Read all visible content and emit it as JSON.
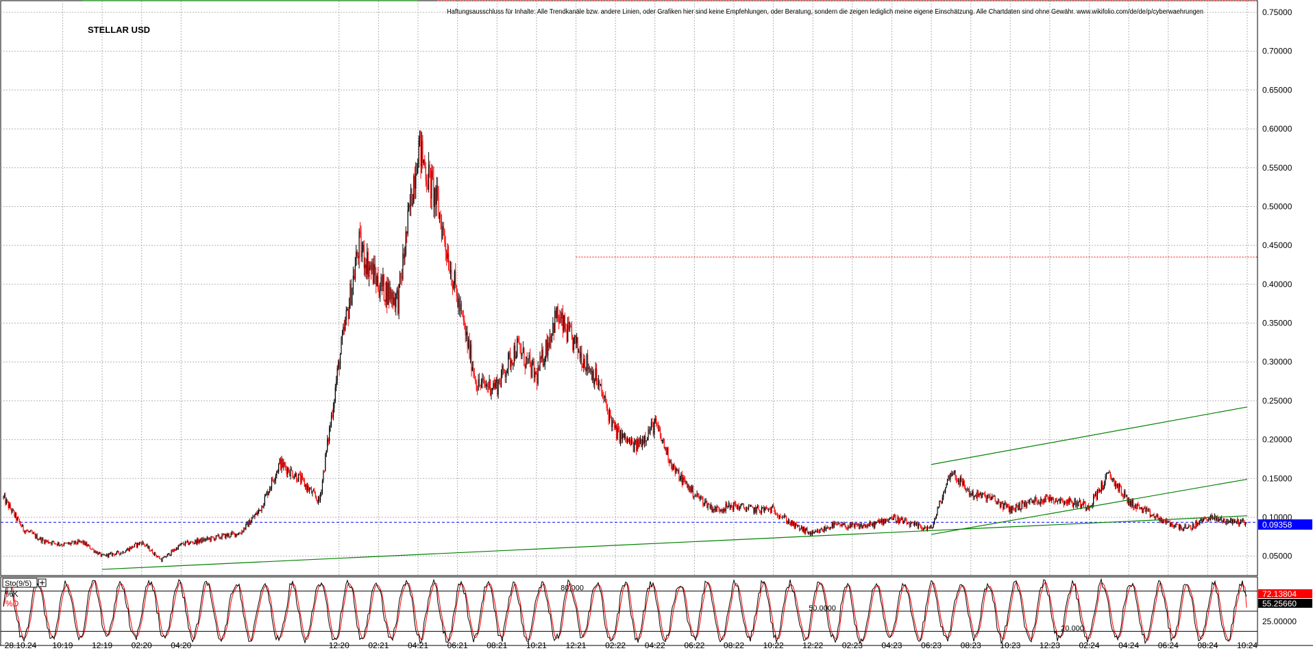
{
  "chart_data": [
    {
      "type": "candlestick",
      "title": "STELLAR USD",
      "disclaimer": "Haftungsausschluss für Inhalte: Alle Trendkanäle bzw. andere Linien, oder Grafiken hier sind keine Empfehlungen, oder Beratung, sondern die zeigen lediglich meine eigene Einschätzung. Alle Chartdaten sind ohne Gewähr. www.wikifolio.com/de/de/p/cyberwaehrungen",
      "x_tick_labels": [
        "28.10.24",
        "10:19",
        "12:19",
        "02:20",
        "04:20",
        "12:20",
        "02:21",
        "04:21",
        "06:21",
        "08:21",
        "10:21",
        "12:21",
        "02:22",
        "04:22",
        "06:22",
        "08:22",
        "10:22",
        "12:22",
        "02:23",
        "04:23",
        "06:23",
        "08:23",
        "10:23",
        "12:23",
        "02:24",
        "04:24",
        "06:24",
        "08:24",
        "10:24"
      ],
      "y_ticks": [
        "0.05000",
        "0.10000",
        "0.15000",
        "0.20000",
        "0.25000",
        "0.30000",
        "0.35000",
        "0.40000",
        "0.45000",
        "0.50000",
        "0.55000",
        "0.60000",
        "0.65000",
        "0.70000",
        "0.75000"
      ],
      "ylim": [
        0.025,
        0.765
      ],
      "grid": true,
      "last_price_label": "0.09358",
      "last_price": 0.09358,
      "period_range": [
        "07:19",
        "10:24"
      ],
      "price_anchors": [
        [
          "07:19",
          0.125
        ],
        [
          "08:19",
          0.085
        ],
        [
          "09:19",
          0.07
        ],
        [
          "10:19",
          0.065
        ],
        [
          "11:19",
          0.068
        ],
        [
          "12:19",
          0.05
        ],
        [
          "01:20",
          0.055
        ],
        [
          "02:20",
          0.068
        ],
        [
          "03:20",
          0.045
        ],
        [
          "04:20",
          0.065
        ],
        [
          "05:20",
          0.07
        ],
        [
          "06:20",
          0.075
        ],
        [
          "07:20",
          0.08
        ],
        [
          "08:20",
          0.11
        ],
        [
          "09:20",
          0.17
        ],
        [
          "10:20",
          0.15
        ],
        [
          "11:20",
          0.12
        ],
        [
          "12:20",
          0.3
        ],
        [
          "01:21",
          0.45
        ],
        [
          "02:21",
          0.4
        ],
        [
          "03:21",
          0.38
        ],
        [
          "04:21",
          0.58
        ],
        [
          "05:21",
          0.5
        ],
        [
          "06:21",
          0.38
        ],
        [
          "07:21",
          0.27
        ],
        [
          "08:21",
          0.27
        ],
        [
          "09:21",
          0.32
        ],
        [
          "10:21",
          0.28
        ],
        [
          "11:21",
          0.36
        ],
        [
          "12:21",
          0.32
        ],
        [
          "01:22",
          0.28
        ],
        [
          "02:22",
          0.21
        ],
        [
          "03:22",
          0.19
        ],
        [
          "04:22",
          0.22
        ],
        [
          "05:22",
          0.16
        ],
        [
          "06:22",
          0.13
        ],
        [
          "07:22",
          0.11
        ],
        [
          "08:22",
          0.115
        ],
        [
          "09:22",
          0.11
        ],
        [
          "10:22",
          0.11
        ],
        [
          "11:22",
          0.09
        ],
        [
          "12:22",
          0.078
        ],
        [
          "01:23",
          0.09
        ],
        [
          "02:23",
          0.088
        ],
        [
          "03:23",
          0.09
        ],
        [
          "04:23",
          0.1
        ],
        [
          "05:23",
          0.09
        ],
        [
          "06:23",
          0.085
        ],
        [
          "07:23",
          0.16
        ],
        [
          "08:23",
          0.13
        ],
        [
          "09:23",
          0.125
        ],
        [
          "10:23",
          0.11
        ],
        [
          "11:23",
          0.12
        ],
        [
          "12:23",
          0.125
        ],
        [
          "01:24",
          0.12
        ],
        [
          "02:24",
          0.115
        ],
        [
          "03:24",
          0.155
        ],
        [
          "04:24",
          0.12
        ],
        [
          "05:24",
          0.105
        ],
        [
          "06:24",
          0.092
        ],
        [
          "07:24",
          0.085
        ],
        [
          "08:24",
          0.1
        ],
        [
          "09:24",
          0.095
        ],
        [
          "10:24",
          0.094
        ]
      ],
      "trend_lines": [
        {
          "from": [
            "12:19",
            0.033
          ],
          "to": [
            "10:24",
            0.102
          ],
          "color": "#008000"
        },
        {
          "from": [
            "06:23",
            0.168
          ],
          "to": [
            "10:24",
            0.242
          ],
          "color": "#008000"
        },
        {
          "from": [
            "06:23",
            0.078
          ],
          "to": [
            "10:24",
            0.149
          ],
          "color": "#008000"
        },
        {
          "from": [
            "11:19",
            0.765
          ],
          "to": [
            "04:21",
            0.765
          ],
          "color": "#008000"
        }
      ],
      "reference_lines": [
        {
          "y": 0.09358,
          "style": "dashed",
          "color": "#0000ff"
        },
        {
          "y": 0.435,
          "style": "dotted",
          "color": "#ff0000",
          "from": "12:21"
        },
        {
          "y": 0.765,
          "style": "dotted",
          "color": "#ff0000",
          "from": "05:21"
        }
      ],
      "candle_colors": {
        "up": "#000000",
        "down": "#ff0000"
      }
    },
    {
      "type": "line",
      "title": "Sto(9/5)",
      "series": [
        {
          "name": "%K",
          "color": "#000000",
          "last_value": 72.13804,
          "last_label": "72.13804"
        },
        {
          "name": "%D",
          "color": "#ff0000",
          "last_value": 55.2566,
          "last_label": "55.25660"
        }
      ],
      "levels": [
        {
          "value": 80,
          "label": "80.000"
        },
        {
          "value": 50,
          "label": "50.0000"
        },
        {
          "value": 20,
          "label": "20.000"
        }
      ],
      "y_tick_labels": [
        "25.00000"
      ],
      "ylim": [
        0,
        100
      ]
    }
  ],
  "icons": {
    "panel_button": "plus-square-icon"
  }
}
